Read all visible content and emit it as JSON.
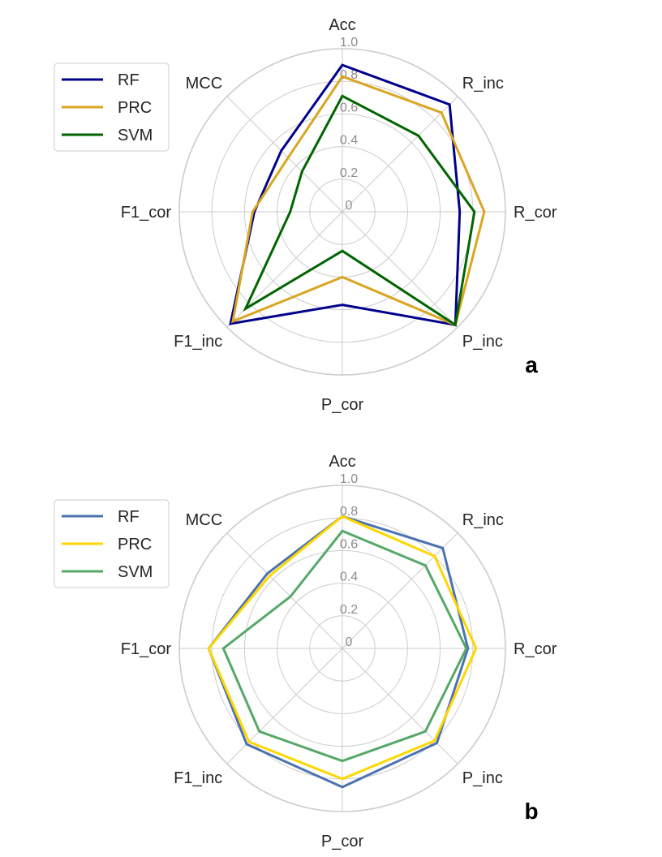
{
  "chart_data": [
    {
      "type": "radar",
      "panel_label": "a",
      "axes": [
        "Acc",
        "R_inc",
        "R_cor",
        "P_inc",
        "P_cor",
        "F1_inc",
        "F1_cor",
        "MCC"
      ],
      "rlim": [
        0,
        1.0
      ],
      "rticks": [
        0,
        0.2,
        0.4,
        0.6,
        0.8,
        1.0
      ],
      "rtick_labels": [
        "0",
        "0.2",
        "0.4",
        "0.6",
        "0.8",
        "1.0"
      ],
      "grid": true,
      "legend_position": "upper-left",
      "series": [
        {
          "name": "RF",
          "color": "#00008b",
          "values": [
            0.9,
            0.93,
            0.72,
            0.98,
            0.57,
            0.97,
            0.54,
            0.53
          ]
        },
        {
          "name": "PRC",
          "color": "#daa520",
          "values": [
            0.83,
            0.86,
            0.87,
            0.98,
            0.4,
            0.95,
            0.55,
            0.47
          ]
        },
        {
          "name": "SVM",
          "color": "#006400",
          "values": [
            0.71,
            0.66,
            0.81,
            0.98,
            0.24,
            0.84,
            0.32,
            0.35
          ]
        }
      ]
    },
    {
      "type": "radar",
      "panel_label": "b",
      "axes": [
        "Acc",
        "R_inc",
        "R_cor",
        "P_inc",
        "P_cor",
        "F1_inc",
        "F1_cor",
        "MCC"
      ],
      "rlim": [
        0,
        1.0
      ],
      "rticks": [
        0,
        0.2,
        0.4,
        0.6,
        0.8,
        1.0
      ],
      "rtick_labels": [
        "0",
        "0.2",
        "0.4",
        "0.6",
        "0.8",
        "1.0"
      ],
      "grid": true,
      "legend_position": "upper-left",
      "series": [
        {
          "name": "RF",
          "color": "#4c72b0",
          "values": [
            0.81,
            0.87,
            0.77,
            0.82,
            0.85,
            0.83,
            0.82,
            0.65
          ]
        },
        {
          "name": "PRC",
          "color": "#ffd700",
          "values": [
            0.81,
            0.8,
            0.82,
            0.8,
            0.8,
            0.81,
            0.82,
            0.63
          ]
        },
        {
          "name": "SVM",
          "color": "#55a868",
          "values": [
            0.72,
            0.72,
            0.76,
            0.72,
            0.69,
            0.72,
            0.73,
            0.45
          ]
        }
      ]
    }
  ]
}
